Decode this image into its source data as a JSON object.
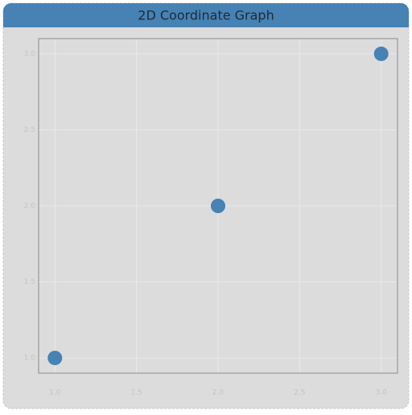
{
  "chart_data": {
    "type": "scatter",
    "title": "2D Coordinate Graph",
    "series": [
      {
        "color": "#4682b4",
        "x": [
          1,
          2,
          3
        ],
        "values": [
          1,
          2,
          3
        ]
      }
    ],
    "xlim": [
      0.9,
      3.1
    ],
    "ylim": [
      0.9,
      3.1
    ],
    "xticks": [
      {
        "value": 1,
        "label": "1.0"
      },
      {
        "value": 1.5,
        "label": "1.5"
      },
      {
        "value": 2,
        "label": "2.0"
      },
      {
        "value": 2.5,
        "label": "2.5"
      },
      {
        "value": 3,
        "label": "3.0"
      }
    ],
    "yticks": [
      {
        "value": 1,
        "label": "1.0"
      },
      {
        "value": 1.5,
        "label": "1.5"
      },
      {
        "value": 2,
        "label": "2.0"
      },
      {
        "value": 2.5,
        "label": "2.5"
      },
      {
        "value": 3,
        "label": "3.0"
      }
    ],
    "grid": true
  }
}
